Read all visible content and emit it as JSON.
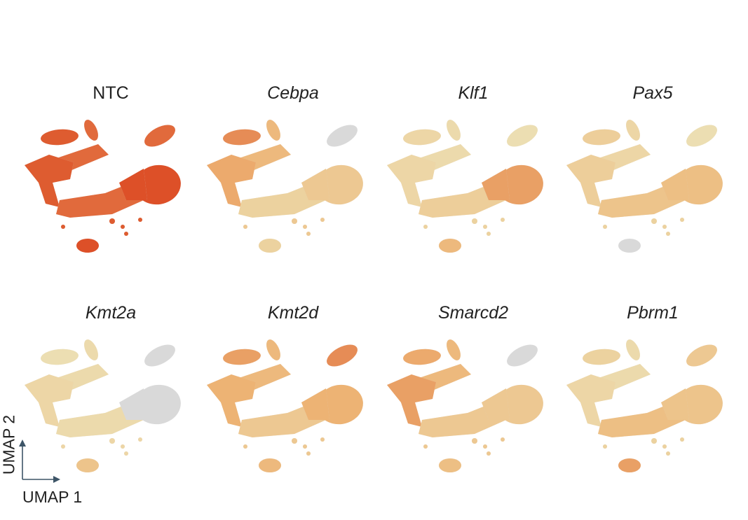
{
  "figure": {
    "embedding": "UMAP",
    "axis_labels": {
      "x": "UMAP 1",
      "y": "UMAP 2"
    },
    "colors": {
      "background_cells": "#d9d9d9",
      "low": "#fbe79a",
      "mid": "#f2a857",
      "high": "#d9421e"
    }
  },
  "chart_data": {
    "type": "scatter",
    "description_type": "umap-feature-plot",
    "panels": [
      {
        "title": "NTC",
        "italic": false,
        "intensity": {
          "left_arm": 0.9,
          "top_blob": 0.9,
          "upper_stalk": 0.85,
          "right_top": 0.85,
          "center_band": 0.85,
          "big_blob": 0.95,
          "bottom_blob": 0.95,
          "small_dots": 0.9
        }
      },
      {
        "title": "Cebpa",
        "italic": true,
        "intensity": {
          "left_arm": 0.55,
          "top_blob": 0.7,
          "upper_stalk": 0.45,
          "right_top": 0.0,
          "center_band": 0.2,
          "big_blob": 0.3,
          "bottom_blob": 0.2,
          "small_dots": 0.3
        }
      },
      {
        "title": "Klf1",
        "italic": true,
        "intensity": {
          "left_arm": 0.15,
          "top_blob": 0.15,
          "upper_stalk": 0.1,
          "right_top": 0.05,
          "center_band": 0.25,
          "big_blob": 0.6,
          "bottom_blob": 0.45,
          "small_dots": 0.2
        }
      },
      {
        "title": "Pax5",
        "italic": true,
        "intensity": {
          "left_arm": 0.25,
          "top_blob": 0.25,
          "upper_stalk": 0.15,
          "right_top": 0.05,
          "center_band": 0.35,
          "big_blob": 0.4,
          "bottom_blob": 0.0,
          "small_dots": 0.2
        }
      },
      {
        "title": "Kmt2a",
        "italic": true,
        "intensity": {
          "left_arm": 0.15,
          "top_blob": 0.05,
          "upper_stalk": 0.1,
          "right_top": 0.0,
          "center_band": 0.1,
          "big_blob": 0.0,
          "bottom_blob": 0.35,
          "small_dots": 0.15
        }
      },
      {
        "title": "Kmt2d",
        "italic": true,
        "intensity": {
          "left_arm": 0.5,
          "top_blob": 0.6,
          "upper_stalk": 0.45,
          "right_top": 0.7,
          "center_band": 0.3,
          "big_blob": 0.5,
          "bottom_blob": 0.45,
          "small_dots": 0.3
        }
      },
      {
        "title": "Smarcd2",
        "italic": true,
        "intensity": {
          "left_arm": 0.6,
          "top_blob": 0.55,
          "upper_stalk": 0.45,
          "right_top": 0.0,
          "center_band": 0.3,
          "big_blob": 0.3,
          "bottom_blob": 0.4,
          "small_dots": 0.3
        }
      },
      {
        "title": "Pbrm1",
        "italic": true,
        "intensity": {
          "left_arm": 0.15,
          "top_blob": 0.2,
          "upper_stalk": 0.1,
          "right_top": 0.3,
          "center_band": 0.4,
          "big_blob": 0.35,
          "bottom_blob": 0.6,
          "small_dots": 0.2
        }
      }
    ]
  }
}
